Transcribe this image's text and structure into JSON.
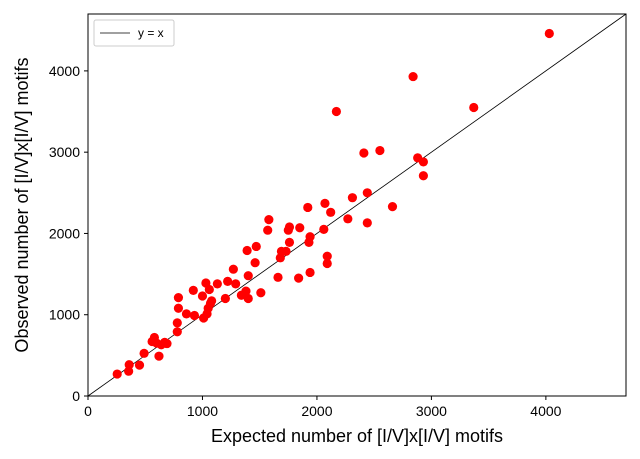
{
  "chart_data": {
    "type": "scatter",
    "title": "",
    "xlabel": "Expected number of [I/V]x[I/V] motifs",
    "ylabel": "Observed number of [I/V]x[I/V] motifs",
    "xlim": [
      0,
      4700
    ],
    "ylim": [
      0,
      4700
    ],
    "xticks": [
      0,
      1000,
      2000,
      3000,
      4000
    ],
    "yticks": [
      0,
      1000,
      2000,
      3000,
      4000
    ],
    "grid": false,
    "legend_position": "top-left",
    "legend": [
      {
        "label": "y = x",
        "kind": "line",
        "color": "#000000"
      }
    ],
    "reference_line": {
      "label": "y = x",
      "from": [
        0,
        0
      ],
      "to": [
        4700,
        4700
      ],
      "color": "#000000"
    },
    "series": [
      {
        "color": "#ff0000",
        "points": [
          [
            255,
            270
          ],
          [
            355,
            305
          ],
          [
            360,
            385
          ],
          [
            450,
            380
          ],
          [
            490,
            525
          ],
          [
            560,
            670
          ],
          [
            580,
            720
          ],
          [
            600,
            650
          ],
          [
            620,
            490
          ],
          [
            640,
            630
          ],
          [
            670,
            660
          ],
          [
            690,
            645
          ],
          [
            780,
            790
          ],
          [
            780,
            900
          ],
          [
            790,
            1080
          ],
          [
            790,
            1210
          ],
          [
            860,
            1010
          ],
          [
            920,
            1300
          ],
          [
            930,
            990
          ],
          [
            1000,
            1230
          ],
          [
            1010,
            960
          ],
          [
            1030,
            1390
          ],
          [
            1040,
            1010
          ],
          [
            1050,
            1080
          ],
          [
            1060,
            1310
          ],
          [
            1070,
            1140
          ],
          [
            1080,
            1170
          ],
          [
            1130,
            1380
          ],
          [
            1200,
            1200
          ],
          [
            1220,
            1410
          ],
          [
            1270,
            1560
          ],
          [
            1290,
            1380
          ],
          [
            1340,
            1240
          ],
          [
            1380,
            1290
          ],
          [
            1390,
            1790
          ],
          [
            1400,
            1200
          ],
          [
            1400,
            1480
          ],
          [
            1460,
            1640
          ],
          [
            1470,
            1840
          ],
          [
            1510,
            1270
          ],
          [
            1570,
            2040
          ],
          [
            1580,
            2170
          ],
          [
            1660,
            1460
          ],
          [
            1680,
            1700
          ],
          [
            1690,
            1780
          ],
          [
            1730,
            1780
          ],
          [
            1750,
            2040
          ],
          [
            1760,
            1890
          ],
          [
            1760,
            2080
          ],
          [
            1840,
            1450
          ],
          [
            1850,
            2070
          ],
          [
            1920,
            2320
          ],
          [
            1930,
            1890
          ],
          [
            1940,
            1520
          ],
          [
            1940,
            1960
          ],
          [
            2060,
            2050
          ],
          [
            2070,
            2370
          ],
          [
            2090,
            1630
          ],
          [
            2090,
            1720
          ],
          [
            2120,
            2260
          ],
          [
            2170,
            3500
          ],
          [
            2270,
            2180
          ],
          [
            2310,
            2440
          ],
          [
            2410,
            2990
          ],
          [
            2440,
            2500
          ],
          [
            2440,
            2130
          ],
          [
            2550,
            3020
          ],
          [
            2660,
            2330
          ],
          [
            2840,
            3930
          ],
          [
            2880,
            2930
          ],
          [
            2930,
            2880
          ],
          [
            2930,
            2710
          ],
          [
            3370,
            3550
          ],
          [
            4030,
            4460
          ]
        ]
      }
    ]
  }
}
